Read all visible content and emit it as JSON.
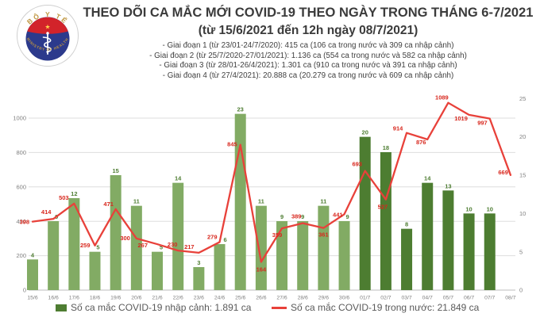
{
  "logo": {
    "top_text": "BỘ Y TẾ",
    "bottom_text": "MINISTRY OF HEALTH",
    "colors": {
      "ring_gold": "#bf9640",
      "band_red": "#d2232a",
      "disc_navy": "#2c3a8c",
      "star_yellow": "#ffd24a"
    }
  },
  "header": {
    "title": "THEO DÕI CA MẮC MỚI COVID-19 THEO NGÀY TRONG THÁNG 6-7/2021",
    "subtitle": "(từ 15/6/2021 đến 12h ngày 08/7/2021)",
    "phases": [
      "- Giai đoạn 1 (từ 23/01-24/7/2020): 415 ca (106 ca trong nước và 309 ca nhập cảnh)",
      "- Giai đoạn 2 (từ 25/7/2020-27/01/2021): 1.136 ca (554 ca trong nước và 582 ca nhập cảnh)",
      "- Giai đoạn 3 (từ 28/01-26/4/2021): 1.301 ca (910 ca trong nước và 391 ca nhập cảnh)",
      "- Giai đoạn 4 (từ 27/4/2021): 20.888 ca (20.279 ca trong nước và 609 ca nhập cảnh)"
    ]
  },
  "chart_data": {
    "type": "bar+line",
    "categories": [
      "15/6",
      "16/6",
      "17/6",
      "18/6",
      "19/6",
      "20/6",
      "21/6",
      "22/6",
      "23/6",
      "24/6",
      "25/6",
      "26/6",
      "27/6",
      "28/6",
      "29/6",
      "30/6",
      "01/7",
      "02/7",
      "03/7",
      "04/7",
      "05/7",
      "06/7",
      "07/7",
      "08/7"
    ],
    "series": [
      {
        "name": "Số ca mắc COVID-19 nhập cảnh",
        "type": "bar",
        "axis": "right",
        "values": [
          4,
          9,
          12,
          5,
          15,
          11,
          5,
          14,
          3,
          6,
          23,
          11,
          9,
          9,
          11,
          9,
          20,
          18,
          8,
          14,
          13,
          10,
          10,
          null
        ],
        "color_june": "#82ab64",
        "color_july": "#4d7d31",
        "label_color": "#4e7d32"
      },
      {
        "name": "Số ca mắc COVID-19 trong nước",
        "type": "line",
        "axis": "left",
        "values": [
          398,
          414,
          503,
          259,
          471,
          300,
          267,
          230,
          217,
          279,
          845,
          164,
          359,
          389,
          361,
          441,
          693,
          527,
          914,
          876,
          1089,
          1019,
          997,
          669
        ],
        "color": "#e8413a",
        "label_color": "#d8281e"
      }
    ],
    "left_axis": {
      "ticks": [
        0,
        200,
        400,
        600,
        800,
        1000
      ],
      "max": 1170
    },
    "right_axis": {
      "ticks": [
        0,
        5,
        10,
        15,
        20,
        25
      ],
      "max": 26.3
    },
    "grid": "horizontal",
    "legend_position": "bottom",
    "legend": [
      {
        "label": "Số ca mắc COVID-19 nhập cảnh: 1.891 ca",
        "swatch": "square",
        "color": "#4e7d32"
      },
      {
        "label": "Số ca mắc COVID-19 trong nước: 21.849 ca",
        "swatch": "line",
        "color": "#e8413a"
      }
    ]
  }
}
